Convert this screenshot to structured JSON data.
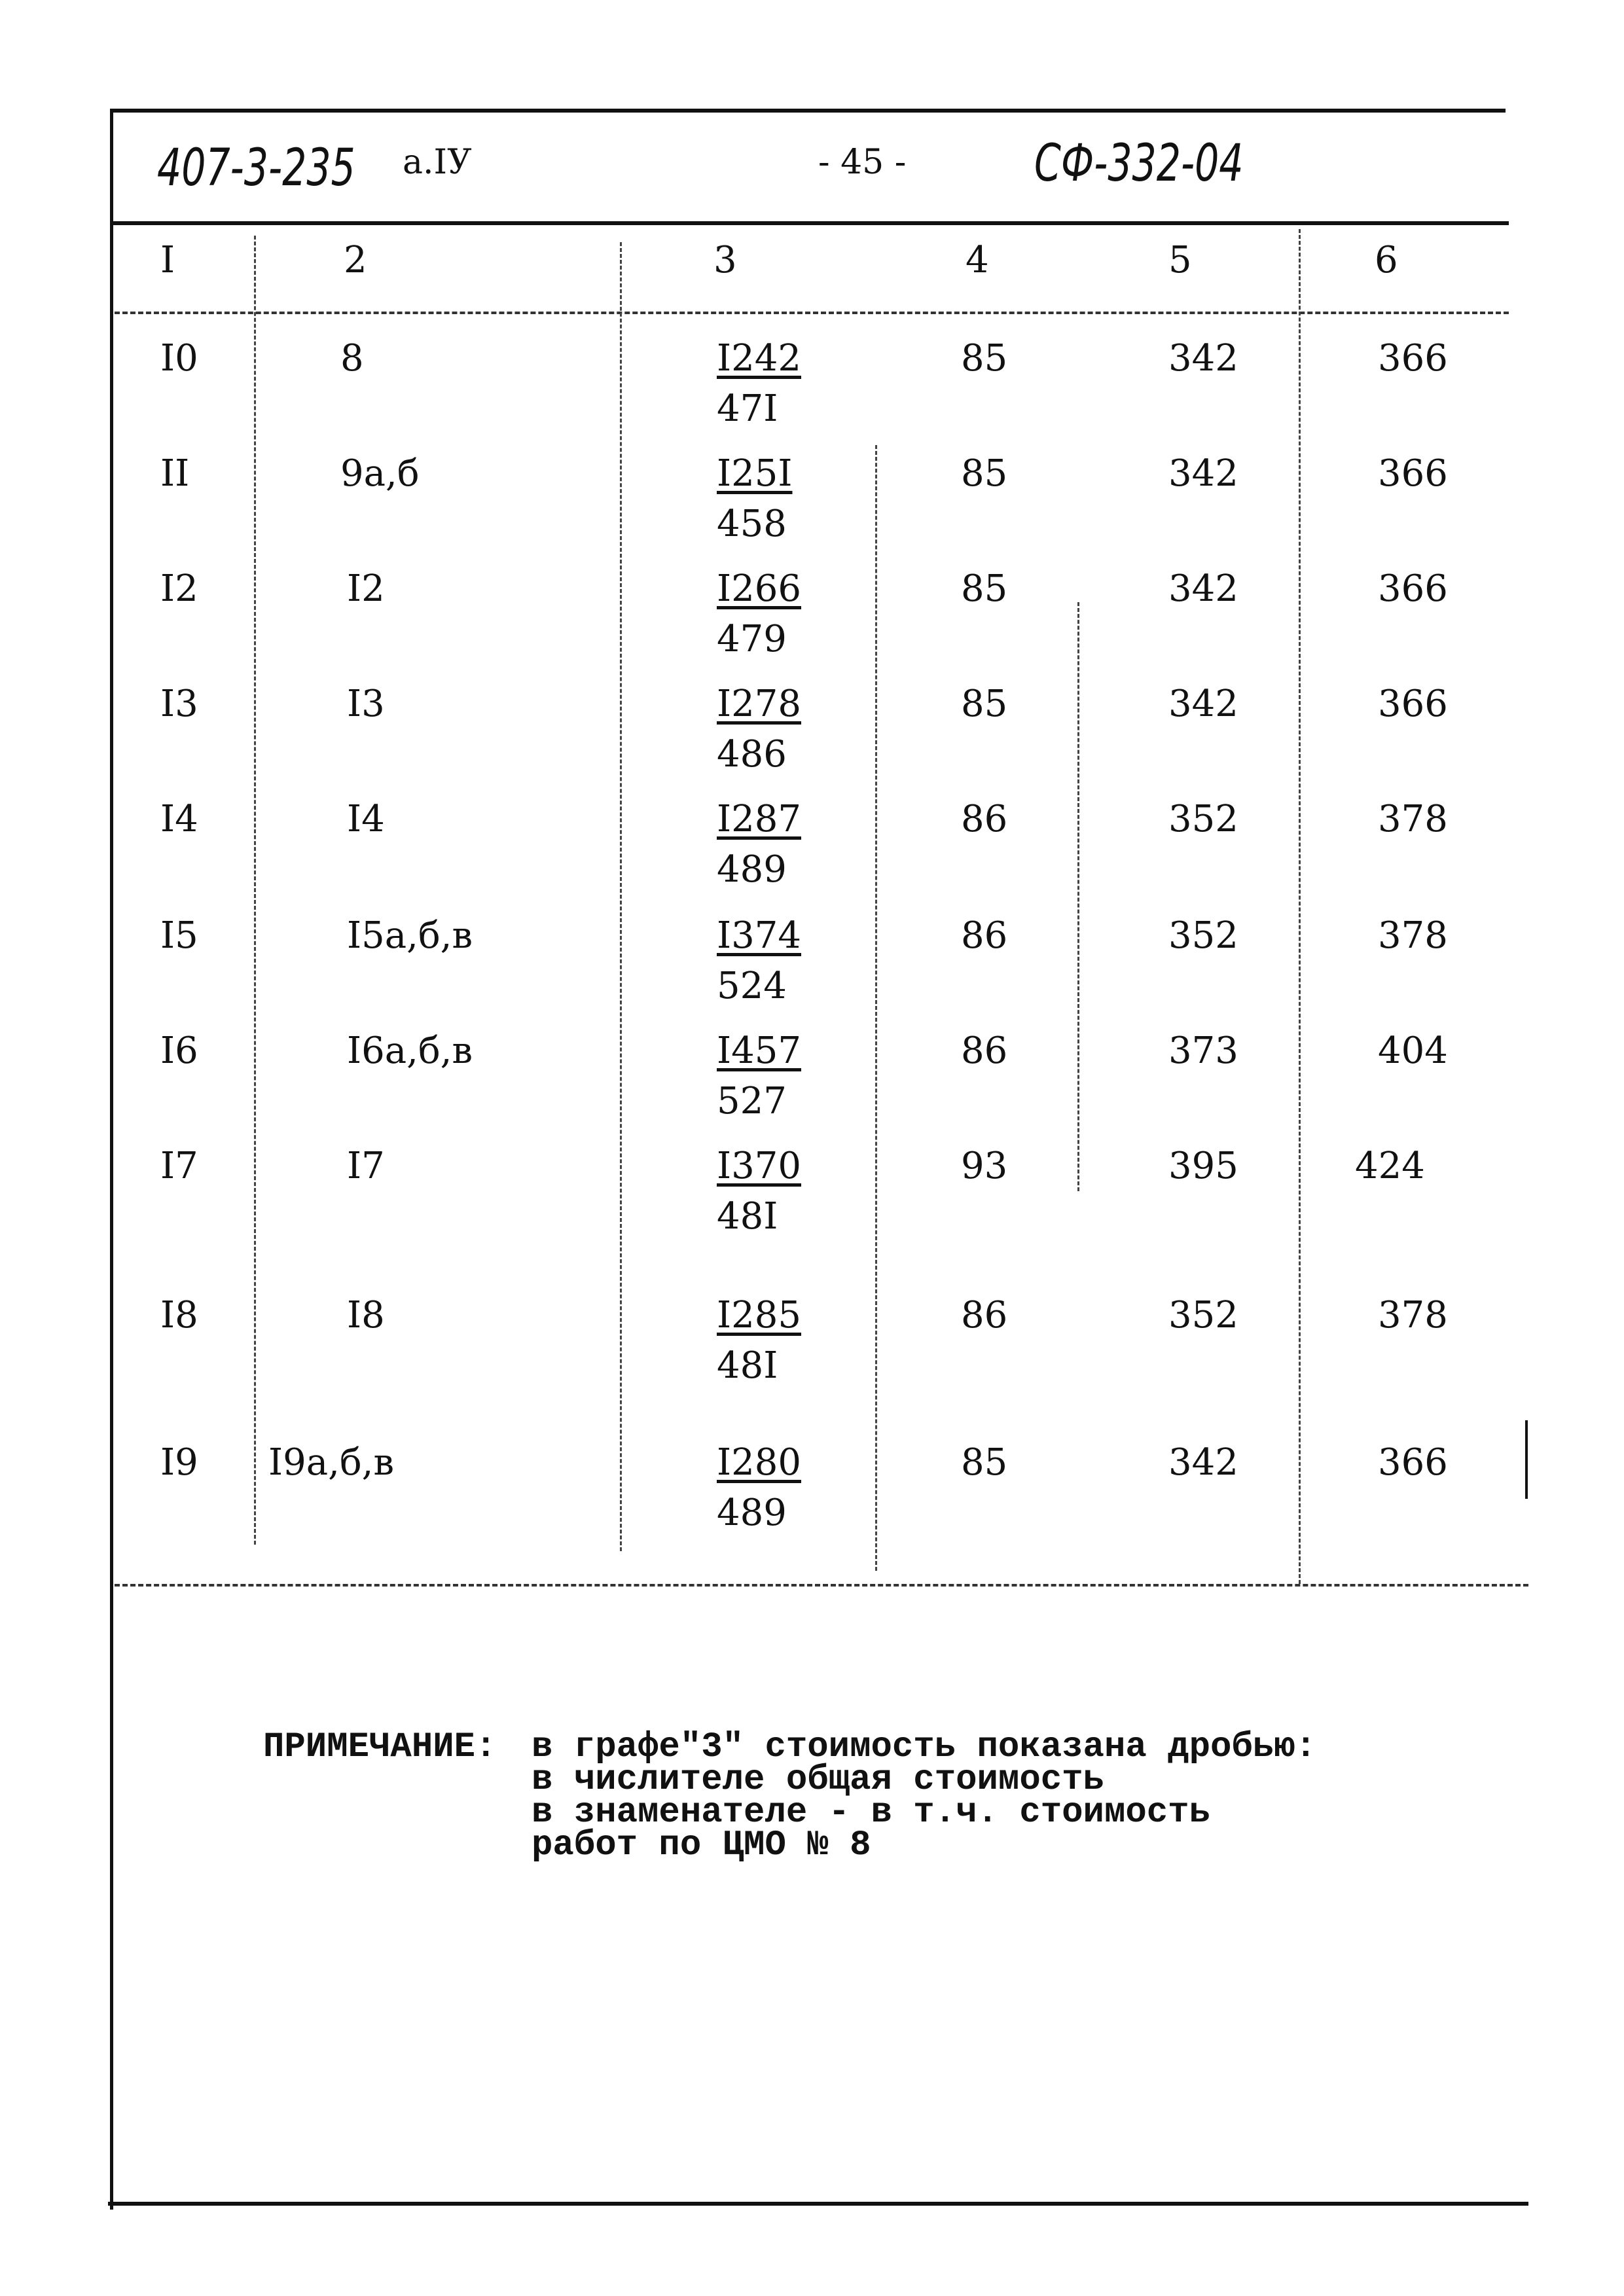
{
  "header": {
    "project_code": "407-3-235",
    "album": "а.IУ",
    "page_number": "- 45 -",
    "sheet_code": "СФ-332-04"
  },
  "table": {
    "columns": [
      "I",
      "2",
      "3",
      "4",
      "5",
      "6"
    ],
    "rows": [
      {
        "c1": "I0",
        "c2": "8",
        "c3_num": "I242",
        "c3_den": "47I",
        "c4": "85",
        "c5": "342",
        "c6": "366"
      },
      {
        "c1": "II",
        "c2": "9а,б",
        "c3_num": "I25I",
        "c3_den": "458",
        "c4": "85",
        "c5": "342",
        "c6": "366"
      },
      {
        "c1": "I2",
        "c2": "I2",
        "c3_num": "I266",
        "c3_den": "479",
        "c4": "85",
        "c5": "342",
        "c6": "366"
      },
      {
        "c1": "I3",
        "c2": "I3",
        "c3_num": "I278",
        "c3_den": "486",
        "c4": "85",
        "c5": "342",
        "c6": "366"
      },
      {
        "c1": "I4",
        "c2": "I4",
        "c3_num": "I287",
        "c3_den": "489",
        "c4": "86",
        "c5": "352",
        "c6": "378"
      },
      {
        "c1": "I5",
        "c2": "I5а,б,в",
        "c3_num": "I374",
        "c3_den": "524",
        "c4": "86",
        "c5": "352",
        "c6": "378"
      },
      {
        "c1": "I6",
        "c2": "I6а,б,в",
        "c3_num": "I457",
        "c3_den": "527",
        "c4": "86",
        "c5": "373",
        "c6": "404"
      },
      {
        "c1": "I7",
        "c2": "I7",
        "c3_num": "I370",
        "c3_den": "48I",
        "c4": "93",
        "c5": "395",
        "c6": "424"
      },
      {
        "c1": "I8",
        "c2": "I8",
        "c3_num": "I285",
        "c3_den": "48I",
        "c4": "86",
        "c5": "352",
        "c6": "378"
      },
      {
        "c1": "I9",
        "c2": "I9а,б,в",
        "c3_num": "I280",
        "c3_den": "489",
        "c4": "85",
        "c5": "342",
        "c6": "366"
      }
    ]
  },
  "note": {
    "label": "ПРИМЕЧАНИЕ:",
    "lines": [
      "в графе\"3\" стоимость показана дробью:",
      "в числителе общая стоимость",
      "в знаменателе - в  т.ч. стоимость",
      "работ  по ЦМО № 8"
    ]
  }
}
